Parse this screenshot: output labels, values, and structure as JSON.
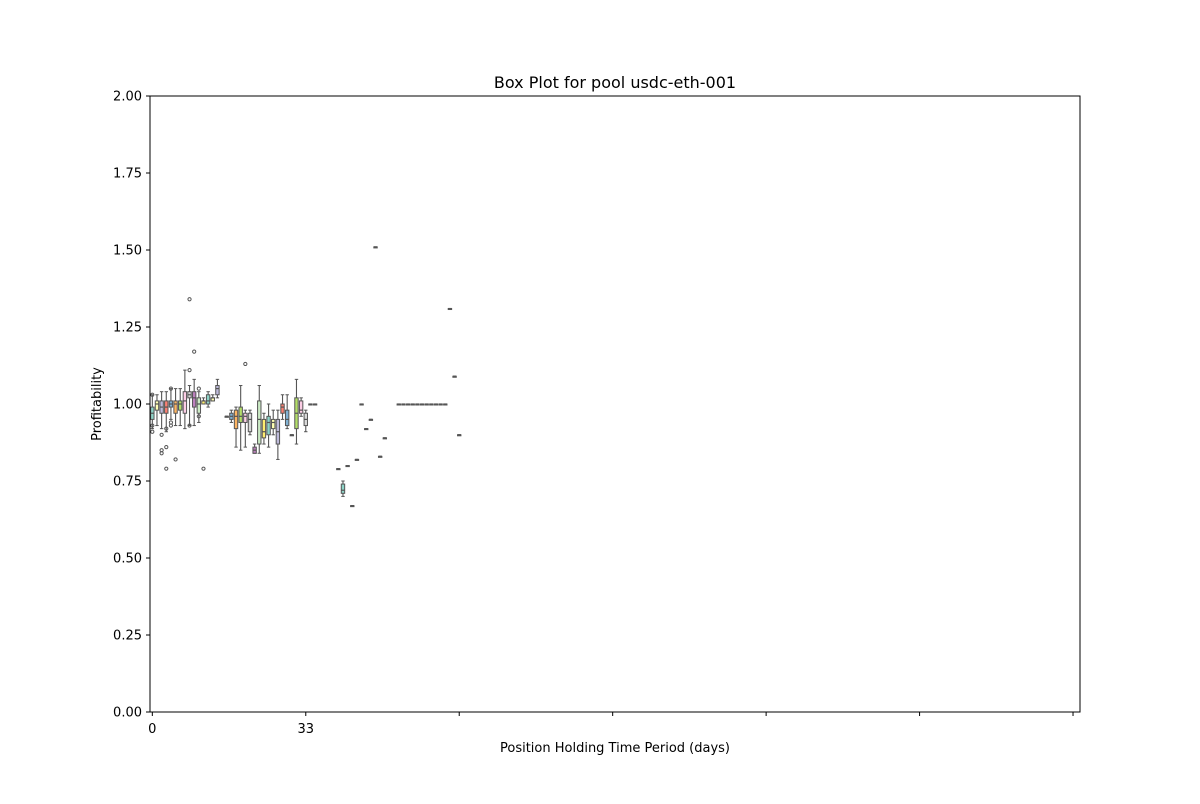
{
  "chart_data": {
    "type": "box",
    "title": "Box Plot for pool usdc-eth-001",
    "xlabel": "Position Holding Time Period (days)",
    "ylabel": "Profitability",
    "ylim": [
      0,
      2
    ],
    "xlim": [
      -0.5,
      199.5
    ],
    "x_tick_positions": [
      0,
      33,
      66,
      99,
      132,
      165,
      198
    ],
    "x_tick_labels": [
      "0",
      "33",
      "",
      "",
      "",
      "",
      ""
    ],
    "y_ticks": [
      0,
      0.25,
      0.5,
      0.75,
      1.0,
      1.25,
      1.5,
      1.75,
      2.0
    ],
    "y_tick_labels": [
      "0.00",
      "0.25",
      "0.50",
      "0.75",
      "1.00",
      "1.25",
      "1.50",
      "1.75",
      "2.00"
    ],
    "grid": false,
    "palette": [
      "#8dd3c7",
      "#ffffb3",
      "#bebada",
      "#fb8072",
      "#80b1d3",
      "#fdb462",
      "#b3de69",
      "#fccde5",
      "#d9d9d9",
      "#bc80bd",
      "#ccebc5",
      "#ffed6f"
    ],
    "boxes": [
      {
        "x": 0,
        "q1": 0.95,
        "median": 0.97,
        "q3": 0.99,
        "low": 0.92,
        "high": 1.03,
        "outliers": [
          0.91,
          0.93,
          1.03
        ]
      },
      {
        "x": 1,
        "q1": 0.98,
        "median": 1.0,
        "q3": 1.01,
        "low": 0.93,
        "high": 1.03,
        "outliers": []
      },
      {
        "x": 2,
        "q1": 0.97,
        "median": 0.99,
        "q3": 1.01,
        "low": 0.92,
        "high": 1.04,
        "outliers": [
          0.84,
          0.85,
          0.9
        ]
      },
      {
        "x": 3,
        "q1": 0.97,
        "median": 0.99,
        "q3": 1.01,
        "low": 0.91,
        "high": 1.04,
        "outliers": [
          0.79,
          0.86,
          0.92
        ]
      },
      {
        "x": 4,
        "q1": 0.99,
        "median": 1.0,
        "q3": 1.01,
        "low": 0.95,
        "high": 1.05,
        "outliers": [
          0.93,
          0.94,
          1.05
        ]
      },
      {
        "x": 5,
        "q1": 0.97,
        "median": 1.0,
        "q3": 1.01,
        "low": 0.93,
        "high": 1.05,
        "outliers": [
          0.82
        ]
      },
      {
        "x": 6,
        "q1": 0.98,
        "median": 1.0,
        "q3": 1.01,
        "low": 0.93,
        "high": 1.05,
        "outliers": []
      },
      {
        "x": 7,
        "q1": 0.97,
        "median": 1.01,
        "q3": 1.04,
        "low": 0.92,
        "high": 1.11,
        "outliers": []
      },
      {
        "x": 8,
        "q1": 1.02,
        "median": 1.03,
        "q3": 1.04,
        "low": 0.93,
        "high": 1.06,
        "outliers": [
          1.11,
          1.34,
          0.93
        ]
      },
      {
        "x": 9,
        "q1": 0.99,
        "median": 1.02,
        "q3": 1.04,
        "low": 0.93,
        "high": 1.08,
        "outliers": [
          1.17
        ]
      },
      {
        "x": 10,
        "q1": 0.97,
        "median": 1.0,
        "q3": 1.02,
        "low": 0.94,
        "high": 1.04,
        "outliers": [
          0.96,
          1.05
        ]
      },
      {
        "x": 11,
        "q1": 1.0,
        "median": 1.01,
        "q3": 1.01,
        "low": 1.0,
        "high": 1.02,
        "outliers": [
          0.79
        ]
      },
      {
        "x": 12,
        "q1": 1.0,
        "median": 1.01,
        "q3": 1.03,
        "low": 0.99,
        "high": 1.04,
        "outliers": []
      },
      {
        "x": 13,
        "q1": 1.01,
        "median": 1.02,
        "q3": 1.02,
        "low": 1.01,
        "high": 1.03,
        "outliers": []
      },
      {
        "x": 14,
        "q1": 1.03,
        "median": 1.05,
        "q3": 1.06,
        "low": 1.02,
        "high": 1.08,
        "outliers": []
      },
      {
        "x": 16,
        "q1": 0.96,
        "median": 0.96,
        "q3": 0.96,
        "low": 0.96,
        "high": 0.96,
        "outliers": []
      },
      {
        "x": 17,
        "q1": 0.95,
        "median": 0.96,
        "q3": 0.97,
        "low": 0.94,
        "high": 0.98,
        "outliers": []
      },
      {
        "x": 18,
        "q1": 0.92,
        "median": 0.96,
        "q3": 0.98,
        "low": 0.86,
        "high": 0.99,
        "outliers": []
      },
      {
        "x": 19,
        "q1": 0.94,
        "median": 0.96,
        "q3": 0.99,
        "low": 0.85,
        "high": 1.06,
        "outliers": []
      },
      {
        "x": 20,
        "q1": 0.94,
        "median": 0.96,
        "q3": 0.97,
        "low": 0.86,
        "high": 0.98,
        "outliers": [
          1.13
        ]
      },
      {
        "x": 21,
        "q1": 0.91,
        "median": 0.95,
        "q3": 0.97,
        "low": 0.9,
        "high": 0.98,
        "outliers": []
      },
      {
        "x": 22,
        "q1": 0.84,
        "median": 0.85,
        "q3": 0.86,
        "low": 0.84,
        "high": 0.87,
        "outliers": []
      },
      {
        "x": 23,
        "q1": 0.87,
        "median": 0.95,
        "q3": 1.01,
        "low": 0.84,
        "high": 1.06,
        "outliers": []
      },
      {
        "x": 24,
        "q1": 0.89,
        "median": 0.91,
        "q3": 0.95,
        "low": 0.87,
        "high": 0.97,
        "outliers": []
      },
      {
        "x": 25,
        "q1": 0.9,
        "median": 0.94,
        "q3": 0.96,
        "low": 0.86,
        "high": 1.0,
        "outliers": []
      },
      {
        "x": 26,
        "q1": 0.92,
        "median": 0.94,
        "q3": 0.95,
        "low": 0.9,
        "high": 0.98,
        "outliers": []
      },
      {
        "x": 27,
        "q1": 0.87,
        "median": 0.91,
        "q3": 0.95,
        "low": 0.82,
        "high": 0.98,
        "outliers": []
      },
      {
        "x": 28,
        "q1": 0.97,
        "median": 0.99,
        "q3": 1.0,
        "low": 0.95,
        "high": 1.03,
        "outliers": []
      },
      {
        "x": 29,
        "q1": 0.93,
        "median": 0.95,
        "q3": 0.98,
        "low": 0.92,
        "high": 1.03,
        "outliers": []
      },
      {
        "x": 30,
        "q1": 0.9,
        "median": 0.9,
        "q3": 0.9,
        "low": 0.9,
        "high": 0.9,
        "outliers": []
      },
      {
        "x": 31,
        "q1": 0.92,
        "median": 0.97,
        "q3": 1.02,
        "low": 0.87,
        "high": 1.08,
        "outliers": []
      },
      {
        "x": 32,
        "q1": 0.97,
        "median": 0.98,
        "q3": 1.01,
        "low": 0.96,
        "high": 1.02,
        "outliers": []
      },
      {
        "x": 33,
        "q1": 0.93,
        "median": 0.95,
        "q3": 0.97,
        "low": 0.91,
        "high": 0.98,
        "outliers": []
      },
      {
        "x": 34,
        "q1": 1.0,
        "median": 1.0,
        "q3": 1.0,
        "low": 1.0,
        "high": 1.0,
        "outliers": []
      },
      {
        "x": 35,
        "q1": 1.0,
        "median": 1.0,
        "q3": 1.0,
        "low": 1.0,
        "high": 1.0,
        "outliers": []
      },
      {
        "x": 40,
        "q1": 0.79,
        "median": 0.79,
        "q3": 0.79,
        "low": 0.79,
        "high": 0.79,
        "outliers": []
      },
      {
        "x": 41,
        "q1": 0.71,
        "median": 0.72,
        "q3": 0.74,
        "low": 0.7,
        "high": 0.75,
        "outliers": []
      },
      {
        "x": 42,
        "q1": 0.8,
        "median": 0.8,
        "q3": 0.8,
        "low": 0.8,
        "high": 0.8,
        "outliers": []
      },
      {
        "x": 43,
        "q1": 0.67,
        "median": 0.67,
        "q3": 0.67,
        "low": 0.67,
        "high": 0.67,
        "outliers": []
      },
      {
        "x": 44,
        "q1": 0.82,
        "median": 0.82,
        "q3": 0.82,
        "low": 0.82,
        "high": 0.82,
        "outliers": []
      },
      {
        "x": 45,
        "q1": 1.0,
        "median": 1.0,
        "q3": 1.0,
        "low": 1.0,
        "high": 1.0,
        "outliers": []
      },
      {
        "x": 46,
        "q1": 0.92,
        "median": 0.92,
        "q3": 0.92,
        "low": 0.92,
        "high": 0.92,
        "outliers": []
      },
      {
        "x": 47,
        "q1": 0.95,
        "median": 0.95,
        "q3": 0.95,
        "low": 0.95,
        "high": 0.95,
        "outliers": []
      },
      {
        "x": 48,
        "q1": 1.51,
        "median": 1.51,
        "q3": 1.51,
        "low": 1.51,
        "high": 1.51,
        "outliers": []
      },
      {
        "x": 49,
        "q1": 0.83,
        "median": 0.83,
        "q3": 0.83,
        "low": 0.83,
        "high": 0.83,
        "outliers": []
      },
      {
        "x": 50,
        "q1": 0.89,
        "median": 0.89,
        "q3": 0.89,
        "low": 0.89,
        "high": 0.89,
        "outliers": []
      },
      {
        "x": 53,
        "q1": 1.0,
        "median": 1.0,
        "q3": 1.0,
        "low": 1.0,
        "high": 1.0,
        "outliers": []
      },
      {
        "x": 54,
        "q1": 1.0,
        "median": 1.0,
        "q3": 1.0,
        "low": 1.0,
        "high": 1.0,
        "outliers": []
      },
      {
        "x": 55,
        "q1": 1.0,
        "median": 1.0,
        "q3": 1.0,
        "low": 1.0,
        "high": 1.0,
        "outliers": []
      },
      {
        "x": 56,
        "q1": 1.0,
        "median": 1.0,
        "q3": 1.0,
        "low": 1.0,
        "high": 1.0,
        "outliers": []
      },
      {
        "x": 57,
        "q1": 1.0,
        "median": 1.0,
        "q3": 1.0,
        "low": 1.0,
        "high": 1.0,
        "outliers": []
      },
      {
        "x": 58,
        "q1": 1.0,
        "median": 1.0,
        "q3": 1.0,
        "low": 1.0,
        "high": 1.0,
        "outliers": []
      },
      {
        "x": 59,
        "q1": 1.0,
        "median": 1.0,
        "q3": 1.0,
        "low": 1.0,
        "high": 1.0,
        "outliers": []
      },
      {
        "x": 60,
        "q1": 1.0,
        "median": 1.0,
        "q3": 1.0,
        "low": 1.0,
        "high": 1.0,
        "outliers": []
      },
      {
        "x": 61,
        "q1": 1.0,
        "median": 1.0,
        "q3": 1.0,
        "low": 1.0,
        "high": 1.0,
        "outliers": []
      },
      {
        "x": 62,
        "q1": 1.0,
        "median": 1.0,
        "q3": 1.0,
        "low": 1.0,
        "high": 1.0,
        "outliers": []
      },
      {
        "x": 63,
        "q1": 1.0,
        "median": 1.0,
        "q3": 1.0,
        "low": 1.0,
        "high": 1.0,
        "outliers": []
      },
      {
        "x": 64,
        "q1": 1.31,
        "median": 1.31,
        "q3": 1.31,
        "low": 1.31,
        "high": 1.31,
        "outliers": []
      },
      {
        "x": 65,
        "q1": 1.09,
        "median": 1.09,
        "q3": 1.09,
        "low": 1.09,
        "high": 1.09,
        "outliers": []
      },
      {
        "x": 66,
        "q1": 0.9,
        "median": 0.9,
        "q3": 0.9,
        "low": 0.9,
        "high": 0.9,
        "outliers": []
      }
    ]
  }
}
